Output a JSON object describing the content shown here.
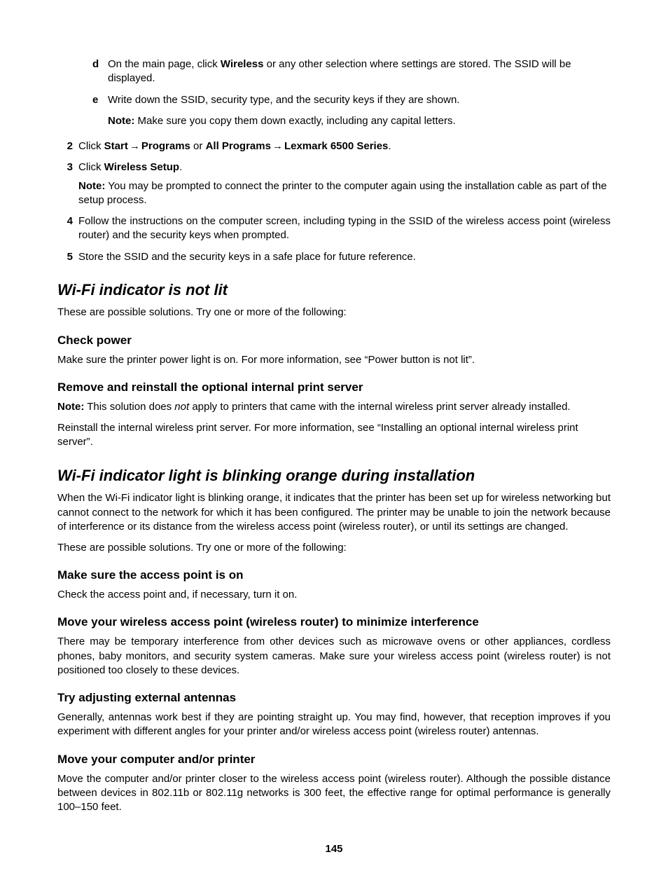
{
  "letterSteps": {
    "d": {
      "marker": "d",
      "pre": "On the main page, click ",
      "bold": "Wireless",
      "post": " or any other selection where settings are stored. The SSID will be displayed."
    },
    "e": {
      "marker": "e",
      "text": "Write down the SSID, security type, and the security keys if they are shown.",
      "noteLabel": "Note:",
      "noteText": " Make sure you copy them down exactly, including any capital letters."
    }
  },
  "numSteps": {
    "s2": {
      "marker": "2",
      "t0": "Click ",
      "b1": "Start",
      "arrow1": " → ",
      "b2": "Programs",
      "t1": " or ",
      "b3": "All Programs",
      "arrow2": " → ",
      "b4": "Lexmark 6500 Series",
      "t2": "."
    },
    "s3": {
      "marker": "3",
      "t0": "Click ",
      "b1": "Wireless Setup",
      "t1": ".",
      "noteLabel": "Note:",
      "noteText": " You may be prompted to connect the printer to the computer again using the installation cable as part of the setup process."
    },
    "s4": {
      "marker": "4",
      "text": "Follow the instructions on the computer screen, including typing in the SSID of the wireless access point (wireless router) and the security keys when prompted."
    },
    "s5": {
      "marker": "5",
      "text": "Store the SSID and the security keys in a safe place for future reference."
    }
  },
  "sec1": {
    "title": "Wi-Fi indicator is not lit",
    "intro": "These are possible solutions. Try one or more of the following:",
    "h1": "Check power",
    "p1": "Make sure the printer power light is on. For more information, see “Power button is not lit”.",
    "h2": "Remove and reinstall the optional internal print server",
    "note2Label": "Note:",
    "note2a": " This solution does ",
    "note2i": "not",
    "note2b": "  apply to printers that came with the internal wireless print server already installed.",
    "p2": "Reinstall the internal wireless print server. For more information, see “Installing an optional internal wireless print server”."
  },
  "sec2": {
    "title": "Wi-Fi indicator light is blinking orange during installation",
    "p0": "When the Wi-Fi indicator light is blinking orange, it indicates that the printer has been set up for wireless networking but cannot connect to the network for which it has been configured. The printer may be unable to join the network because of interference or its distance from the wireless access point (wireless router), or until its settings are changed.",
    "p1": "These are possible solutions. Try one or more of the following:",
    "h1": "Make sure the access point is on",
    "p1b": "Check the access point and, if necessary, turn it on.",
    "h2": "Move your wireless access point (wireless router) to minimize interference",
    "p2": "There may be temporary interference from other devices such as microwave ovens or other appliances, cordless phones, baby monitors, and security system cameras. Make sure your wireless access point (wireless router) is not positioned too closely to these devices.",
    "h3": "Try adjusting external antennas",
    "p3": "Generally, antennas work best if they are pointing straight up. You may find, however, that reception improves if you experiment with different angles for your printer and/or wireless access point (wireless router) antennas.",
    "h4": "Move your computer and/or printer",
    "p4": "Move the computer and/or printer closer to the wireless access point (wireless router). Although the possible distance between devices in 802.11b or 802.11g networks is 300 feet, the effective range for optimal performance is generally 100–150 feet."
  },
  "pageNumber": "145"
}
